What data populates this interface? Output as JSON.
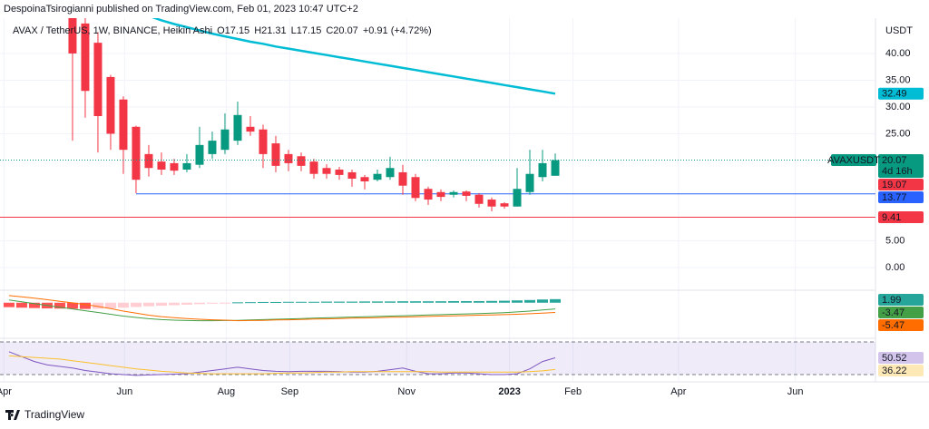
{
  "header": {
    "publisher": "DespoinaTsirogianni published on TradingView.com, Feb 01, 2023 10:47 UTC+2",
    "symbol": "AVAX / TetherUS, 1W, BINANCE, Heikin Ashi",
    "ohlc": [
      "O17.15",
      "H21.31",
      "L17.15",
      "C20.07"
    ],
    "change": "+0.91 (+4.72%)",
    "currency": "USDT"
  },
  "footer": {
    "brand": "TradingView"
  },
  "chart_data": [
    {
      "type": "candlestick",
      "x": [
        0,
        1,
        2,
        3,
        4,
        5,
        6,
        7,
        8,
        9,
        10,
        11,
        12,
        13,
        14,
        15,
        16,
        17,
        18,
        19,
        20,
        21,
        22,
        23,
        24,
        25,
        26,
        27,
        28,
        29,
        30,
        31,
        32,
        33,
        34,
        35,
        36,
        37,
        38
      ],
      "open": [
        50,
        45.6,
        42,
        35.6,
        31.4,
        26.3,
        21.2,
        19.8,
        19.5,
        18.3,
        19.2,
        21.2,
        22,
        23.7,
        26.3,
        25.8,
        23.2,
        21.2,
        20.8,
        19.8,
        18.6,
        18.3,
        17.8,
        16.9,
        16.4,
        16.9,
        17.8,
        16.9,
        14.7,
        14.1,
        13.6,
        14.2,
        13.6,
        12.7,
        12,
        11.4,
        14.1,
        16.9,
        17.15
      ],
      "high": [
        60,
        47,
        44,
        36,
        32,
        26.5,
        22.9,
        21.5,
        20.3,
        21.2,
        26.3,
        25.4,
        28.8,
        31,
        28.3,
        26.7,
        24.6,
        22,
        21.5,
        20.3,
        19.3,
        18.8,
        18.3,
        17.3,
        18.3,
        20.7,
        19.2,
        17.5,
        15.1,
        14.6,
        14.4,
        14.4,
        13.9,
        13.1,
        12.2,
        18.6,
        22,
        22,
        21.31
      ],
      "low": [
        23.7,
        28,
        21.5,
        22,
        17.5,
        13.9,
        17,
        17.3,
        17.3,
        17.8,
        18.6,
        20.3,
        21.2,
        22.9,
        24.6,
        18.6,
        17.8,
        18,
        18,
        16.6,
        16.6,
        16.4,
        15.1,
        14.6,
        16.1,
        16.4,
        13.6,
        12.4,
        11.7,
        12.4,
        13.1,
        12.4,
        11.2,
        10.5,
        11,
        11.4,
        13.6,
        16.1,
        17.15
      ],
      "close": [
        40,
        33,
        28.3,
        25,
        22,
        16.4,
        18.6,
        18.3,
        18.1,
        19.5,
        22.9,
        23.7,
        25.8,
        28.5,
        25.4,
        21.2,
        19,
        19.5,
        19,
        17.5,
        17.5,
        17.3,
        16.6,
        16.1,
        17.5,
        18.6,
        15.3,
        13,
        12.7,
        13.2,
        14.1,
        13.4,
        11.9,
        11.4,
        11.4,
        14.7,
        17.5,
        19.5,
        20.07
      ],
      "up_color": "#089981",
      "down_color": "#f23645",
      "ma": {
        "color": "#00bcd4",
        "values": [
          null,
          null,
          null,
          null,
          null,
          null,
          47.0,
          46.2,
          45.5,
          44.9,
          44.3,
          43.7,
          43.2,
          42.7,
          42.2,
          41.8,
          41.3,
          40.9,
          40.5,
          40.1,
          39.7,
          39.3,
          38.9,
          38.5,
          38.1,
          37.7,
          37.3,
          36.9,
          36.5,
          36.1,
          35.7,
          35.3,
          34.9,
          34.5,
          34.1,
          33.7,
          33.3,
          32.9,
          32.49
        ]
      },
      "hlines": [
        {
          "value": 13.77,
          "color": "#2962ff"
        },
        {
          "value": 9.41,
          "color": "#f23645"
        }
      ],
      "extra_label": {
        "value": 19.07,
        "color": "#f23645"
      },
      "symbol_label": "AVAXUSDT",
      "countdown": "4d 16h",
      "xlim": [
        -5.71,
        63.21
      ],
      "xticks": [
        {
          "value": -5.4,
          "label": "Apr"
        },
        {
          "value": 4.1,
          "label": "Jun"
        },
        {
          "value": 12.1,
          "label": "Aug"
        },
        {
          "value": 17.1,
          "label": "Sep"
        },
        {
          "value": 26.3,
          "label": "Nov"
        },
        {
          "value": 34.4,
          "label": "2023",
          "bold": true
        },
        {
          "value": 39.4,
          "label": "Feb"
        },
        {
          "value": 47.7,
          "label": "Apr"
        },
        {
          "value": 56.9,
          "label": "Jun"
        }
      ],
      "ylim": [
        -3.9,
        46.6
      ],
      "yticks": [
        {
          "value": 40,
          "label": "40.00"
        },
        {
          "value": 35,
          "label": "35.00"
        },
        {
          "value": 30,
          "label": "30.00"
        },
        {
          "value": 25,
          "label": "25.00"
        },
        {
          "value": 5,
          "label": "5.00"
        },
        {
          "value": 0,
          "label": "0.00"
        }
      ],
      "grid": true
    },
    {
      "type": "macd",
      "x": [
        -5,
        -4,
        -3,
        -2,
        -1,
        0,
        1,
        2,
        3,
        4,
        5,
        6,
        7,
        8,
        9,
        10,
        11,
        12,
        13,
        14,
        15,
        16,
        17,
        18,
        19,
        20,
        21,
        22,
        23,
        24,
        25,
        26,
        27,
        28,
        29,
        30,
        31,
        32,
        33,
        34,
        35,
        36,
        37,
        38
      ],
      "histogram": {
        "values": [
          -2.5,
          -2.8,
          -3.0,
          -3.2,
          -3.3,
          -3.4,
          -3.5,
          -3.4,
          -3.2,
          -2.8,
          -2.4,
          -2.0,
          -1.7,
          -1.4,
          -1.1,
          -0.8,
          -0.5,
          -0.2,
          0.2,
          0.3,
          0.4,
          0.4,
          0.5,
          0.5,
          0.5,
          0.6,
          0.6,
          0.6,
          0.7,
          0.7,
          0.7,
          0.8,
          0.8,
          0.8,
          0.8,
          0.9,
          0.9,
          0.9,
          1.0,
          1.1,
          1.3,
          1.5,
          1.8,
          1.99
        ],
        "colors": {
          "pos_up": "#26a69a",
          "pos_down": "#b2dfdb",
          "neg_down": "#ff5252",
          "neg_up": "#ffcdd2"
        }
      },
      "series": [
        {
          "color": "#43a047",
          "values": [
            1.5,
            0.5,
            -0.5,
            -1.5,
            -2.5,
            -3.5,
            -4.5,
            -5.5,
            -6.5,
            -7.5,
            -8.3,
            -9.0,
            -9.5,
            -9.8,
            -10.0,
            -10.1,
            -10.1,
            -10.0,
            -9.9,
            -9.7,
            -9.5,
            -9.3,
            -9.1,
            -8.9,
            -8.7,
            -8.5,
            -8.3,
            -8.1,
            -7.9,
            -7.7,
            -7.5,
            -7.3,
            -7.1,
            -6.9,
            -6.7,
            -6.5,
            -6.3,
            -6.1,
            -5.9,
            -5.6,
            -5.2,
            -4.7,
            -4.1,
            -3.47
          ]
        },
        {
          "color": "#ff6d00",
          "values": [
            4.0,
            3.3,
            2.5,
            1.7,
            0.8,
            -0.1,
            -1.0,
            -2.1,
            -3.3,
            -4.7,
            -5.9,
            -7.0,
            -7.8,
            -8.4,
            -8.9,
            -9.3,
            -9.6,
            -9.8,
            -10.1,
            -10.0,
            -9.9,
            -9.7,
            -9.6,
            -9.4,
            -9.2,
            -9.1,
            -8.9,
            -8.7,
            -8.6,
            -8.4,
            -8.2,
            -8.1,
            -7.9,
            -7.7,
            -7.5,
            -7.4,
            -7.2,
            -7.0,
            -6.9,
            -6.7,
            -6.5,
            -6.2,
            -5.9,
            -5.47
          ]
        }
      ],
      "ylim": [
        -19.5,
        6.5
      ]
    },
    {
      "type": "line",
      "x": [
        -5,
        -4,
        -3,
        -2,
        -1,
        0,
        1,
        2,
        3,
        4,
        5,
        6,
        7,
        8,
        9,
        10,
        11,
        12,
        13,
        14,
        15,
        16,
        17,
        18,
        19,
        20,
        21,
        22,
        23,
        24,
        25,
        26,
        27,
        28,
        29,
        30,
        31,
        32,
        33,
        34,
        35,
        36,
        37,
        38
      ],
      "series": [
        {
          "color": "#7e57c2",
          "values": [
            58,
            52,
            46,
            42,
            40,
            38,
            35,
            33,
            31,
            30,
            29,
            29.5,
            30,
            30.5,
            31,
            33,
            35,
            37,
            39,
            37,
            35,
            34,
            33.5,
            34,
            34,
            34,
            33.5,
            33,
            33,
            34,
            36,
            38,
            34,
            31,
            31,
            32,
            32,
            31,
            30,
            30,
            31,
            37,
            46,
            50.52
          ]
        },
        {
          "color": "#fbc02d",
          "values": [
            53,
            52,
            51,
            50,
            49,
            47,
            45,
            43,
            41,
            39,
            37,
            35.5,
            34,
            33,
            32,
            31.5,
            31,
            31,
            31,
            31,
            31,
            31.5,
            32,
            32,
            32.5,
            33,
            33,
            33.5,
            33.5,
            33.5,
            33.5,
            33.5,
            33.5,
            33.5,
            33,
            33,
            33,
            33,
            33,
            33,
            33,
            33.5,
            34.5,
            36.22
          ]
        }
      ],
      "bands": [
        70,
        30
      ],
      "band_color": "#7e57c2",
      "ylim": [
        22.2,
        73.3
      ]
    }
  ]
}
